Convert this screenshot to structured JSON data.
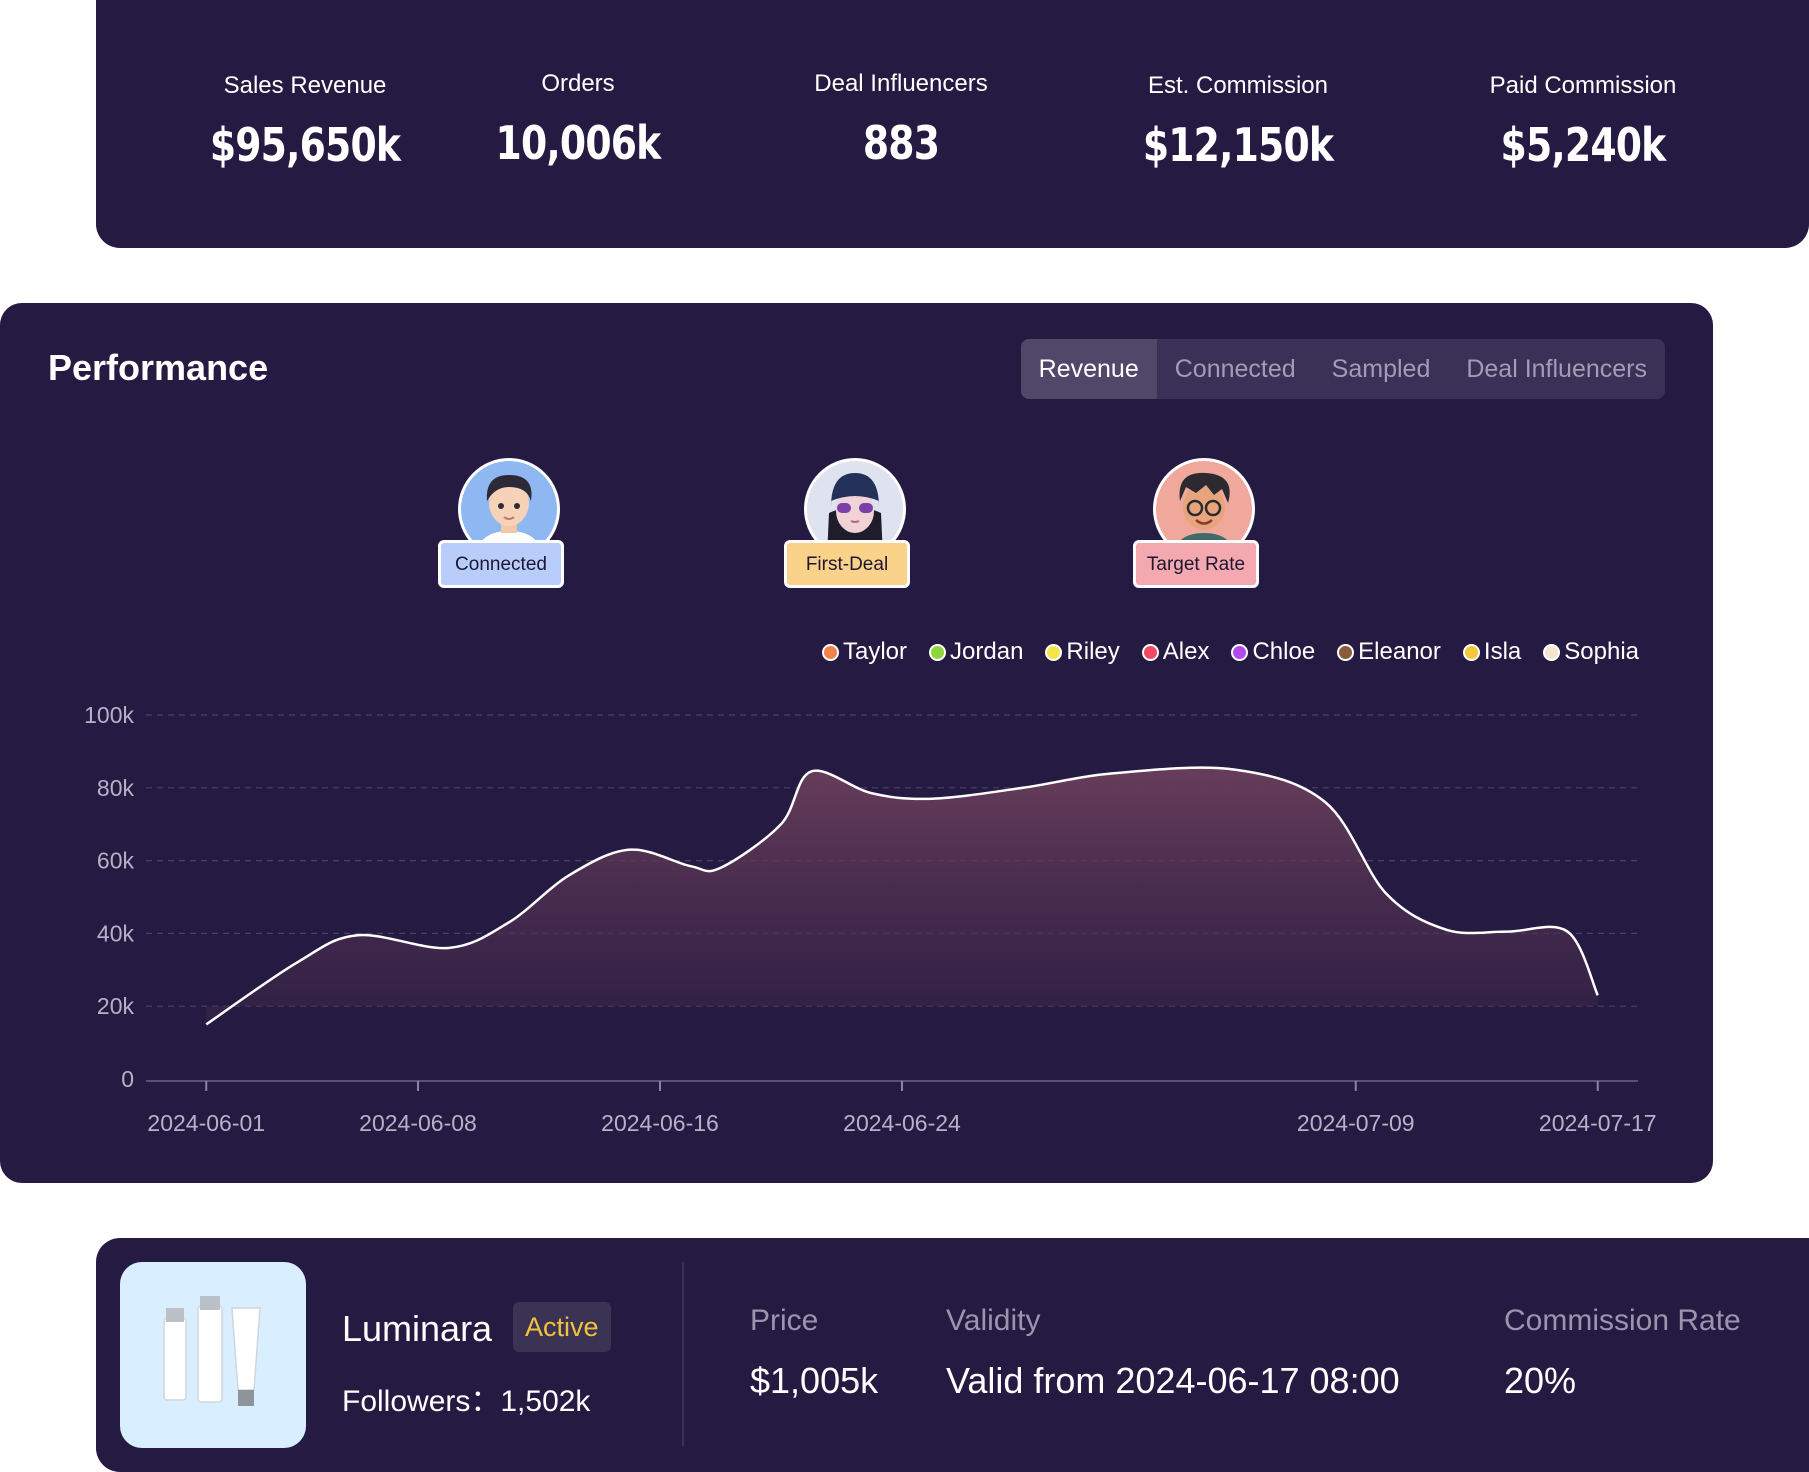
{
  "stats": [
    {
      "label": "Sales Revenue",
      "value": "$95,650k"
    },
    {
      "label": "Orders",
      "value": "10,006k"
    },
    {
      "label": "Deal Influencers",
      "value": "883"
    },
    {
      "label": "Est. Commission",
      "value": "$12,150k"
    },
    {
      "label": "Paid Commission",
      "value": "$5,240k"
    }
  ],
  "performance": {
    "title": "Performance",
    "tabs": [
      "Revenue",
      "Connected",
      "Sampled",
      "Deal Influencers"
    ],
    "active_tab": "Revenue",
    "badges": [
      {
        "label": "Connected",
        "color": "#b8cdfa",
        "avatar_bg": "#8fb7f2"
      },
      {
        "label": "First-Deal",
        "color": "#fbd28a",
        "avatar_bg": "#dfe2ef"
      },
      {
        "label": "Target Rate",
        "color": "#f4a8b0",
        "avatar_bg": "#f0a79c"
      }
    ],
    "legend": [
      {
        "name": "Taylor",
        "color": "#f0824a"
      },
      {
        "name": "Jordan",
        "color": "#8fd63a"
      },
      {
        "name": "Riley",
        "color": "#f3e64a"
      },
      {
        "name": "Alex",
        "color": "#f04a62"
      },
      {
        "name": "Chloe",
        "color": "#b34af0"
      },
      {
        "name": "Eleanor",
        "color": "#8a5a3a"
      },
      {
        "name": "Isla",
        "color": "#f3c83a"
      },
      {
        "name": "Sophia",
        "color": "#f7e6cf"
      }
    ]
  },
  "chart_data": {
    "type": "area",
    "x": [
      "2024-06-01",
      "2024-06-04",
      "2024-06-06",
      "2024-06-09",
      "2024-06-11",
      "2024-06-13",
      "2024-06-15",
      "2024-06-17",
      "2024-06-18",
      "2024-06-20",
      "2024-06-21",
      "2024-06-23",
      "2024-06-25",
      "2024-06-28",
      "2024-07-01",
      "2024-07-05",
      "2024-07-08",
      "2024-07-10",
      "2024-07-12",
      "2024-07-14",
      "2024-07-16",
      "2024-07-17"
    ],
    "values": [
      15000,
      32000,
      39500,
      36000,
      43000,
      56000,
      63000,
      58500,
      58000,
      70000,
      84500,
      78500,
      77000,
      80000,
      84000,
      85000,
      76000,
      51000,
      41000,
      40500,
      40500,
      23000
    ],
    "xticks": [
      "2024-06-01",
      "2024-06-08",
      "2024-06-16",
      "2024-06-24",
      "2024-07-09",
      "2024-07-17"
    ],
    "yticks": [
      "0",
      "20k",
      "40k",
      "60k",
      "80k",
      "100k"
    ],
    "ylim": [
      0,
      100000
    ],
    "grid": true,
    "line_color": "#ffffff",
    "fill_color": "#6b3f5c"
  },
  "product": {
    "name": "Luminara",
    "status": "Active",
    "followers": "Followers：1,502k",
    "fields": [
      {
        "label": "Price",
        "value": "$1,005k"
      },
      {
        "label": "Validity",
        "value": "Valid from 2024-06-17 08:00"
      },
      {
        "label": "Commission Rate",
        "value": "20%"
      }
    ]
  }
}
